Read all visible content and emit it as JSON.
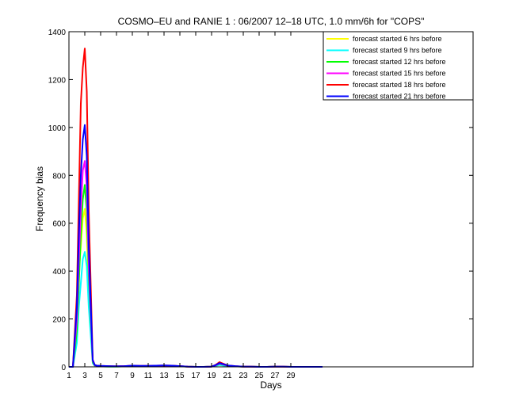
{
  "chart_data": {
    "type": "line",
    "title": "COSMO–EU and RANIE 1 : 06/2007 12–18 UTC, 1.0 mm/6h for \"COPS\"",
    "xlabel": "Days",
    "ylabel": "Frequency bias",
    "xlim": [
      1,
      52
    ],
    "ylim": [
      0,
      1400
    ],
    "xticks": [
      1,
      3,
      5,
      7,
      9,
      11,
      13,
      15,
      17,
      19,
      21,
      23,
      25,
      27,
      29
    ],
    "xtick_labels": [
      "1",
      "3",
      "5",
      "7",
      "9",
      "11",
      "13",
      "15",
      "17",
      "19",
      "21",
      "23",
      "25",
      "27",
      "29"
    ],
    "yticks": [
      0,
      200,
      400,
      600,
      800,
      1000,
      1200,
      1400
    ],
    "ytick_labels": [
      "0",
      "200",
      "400",
      "600",
      "800",
      "1000",
      "1200",
      "1400"
    ],
    "grid": false,
    "legend_position": "top-right",
    "series": [
      {
        "name": "forecast started 6 hrs before",
        "color": "#ffff00",
        "x": [
          1,
          1.5,
          2,
          2.25,
          2.5,
          2.75,
          3,
          3.25,
          3.5,
          4,
          4.25,
          4.5,
          5,
          6,
          7,
          8,
          9,
          10,
          11,
          12,
          13,
          14,
          15,
          16,
          17,
          18,
          19,
          19.5,
          20,
          21,
          22,
          23,
          24,
          25,
          26,
          27,
          28,
          29,
          30,
          31,
          32,
          33
        ],
        "y": [
          0,
          0,
          200,
          400,
          500,
          620,
          660,
          550,
          300,
          20,
          5,
          3,
          2,
          1,
          1,
          2,
          3,
          2,
          2,
          3,
          4,
          3,
          2,
          1,
          0,
          0,
          1,
          5,
          10,
          4,
          2,
          1,
          1,
          0,
          0,
          1,
          1,
          0,
          0,
          0,
          0,
          0
        ]
      },
      {
        "name": "forecast started 9 hrs before",
        "color": "#00ffff",
        "x": [
          1,
          1.5,
          2,
          2.25,
          2.5,
          2.75,
          3,
          3.25,
          3.5,
          4,
          4.25,
          4.5,
          5,
          6,
          7,
          8,
          9,
          10,
          11,
          12,
          13,
          14,
          15,
          16,
          17,
          18,
          19,
          19.5,
          20,
          21,
          22,
          23,
          24,
          25,
          26,
          27,
          28,
          29,
          30,
          31,
          32,
          33
        ],
        "y": [
          0,
          0,
          100,
          250,
          350,
          450,
          480,
          420,
          250,
          15,
          5,
          3,
          2,
          1,
          1,
          2,
          2,
          2,
          2,
          3,
          3,
          2,
          2,
          1,
          0,
          0,
          1,
          4,
          8,
          3,
          2,
          1,
          1,
          0,
          0,
          1,
          1,
          0,
          0,
          0,
          0,
          0
        ]
      },
      {
        "name": "forecast started 12 hrs before",
        "color": "#00ff00",
        "x": [
          1,
          1.5,
          2,
          2.25,
          2.5,
          2.75,
          3,
          3.25,
          3.5,
          4,
          4.25,
          4.5,
          5,
          6,
          7,
          8,
          9,
          10,
          11,
          12,
          13,
          14,
          15,
          16,
          17,
          18,
          19,
          19.5,
          20,
          21,
          22,
          23,
          24,
          25,
          26,
          27,
          28,
          29,
          30,
          31,
          32,
          33
        ],
        "y": [
          0,
          0,
          150,
          350,
          550,
          700,
          760,
          650,
          380,
          20,
          6,
          4,
          3,
          2,
          2,
          3,
          4,
          3,
          3,
          4,
          5,
          4,
          3,
          1,
          0,
          0,
          1,
          6,
          12,
          5,
          2,
          1,
          1,
          0,
          0,
          1,
          1,
          0,
          0,
          0,
          0,
          0
        ]
      },
      {
        "name": "forecast started 15 hrs before",
        "color": "#ff00ff",
        "x": [
          1,
          1.5,
          2,
          2.25,
          2.5,
          2.75,
          3,
          3.25,
          3.5,
          4,
          4.25,
          4.5,
          5,
          6,
          7,
          8,
          9,
          10,
          11,
          12,
          13,
          14,
          15,
          16,
          17,
          18,
          19,
          19.5,
          20,
          21,
          22,
          23,
          24,
          25,
          26,
          27,
          28,
          29,
          30,
          31,
          32,
          33
        ],
        "y": [
          0,
          0,
          200,
          450,
          650,
          820,
          860,
          750,
          420,
          25,
          7,
          4,
          3,
          2,
          2,
          3,
          4,
          3,
          3,
          4,
          5,
          4,
          3,
          1,
          0,
          0,
          1,
          6,
          14,
          5,
          2,
          1,
          1,
          0,
          0,
          1,
          1,
          0,
          0,
          0,
          0,
          0
        ]
      },
      {
        "name": "forecast started 18 hrs before",
        "color": "#ff0000",
        "x": [
          1,
          1.5,
          2,
          2.25,
          2.5,
          2.75,
          3,
          3.25,
          3.5,
          4,
          4.25,
          4.5,
          5,
          6,
          7,
          8,
          9,
          10,
          11,
          12,
          13,
          14,
          15,
          16,
          17,
          18,
          19,
          19.5,
          20,
          21,
          22,
          23,
          24,
          25,
          26,
          27,
          28,
          29,
          30,
          31,
          32,
          33
        ],
        "y": [
          0,
          0,
          300,
          700,
          1100,
          1250,
          1330,
          1150,
          650,
          30,
          8,
          5,
          4,
          3,
          2,
          3,
          5,
          4,
          4,
          5,
          6,
          5,
          3,
          1,
          0,
          0,
          1,
          8,
          20,
          6,
          3,
          1,
          1,
          0,
          0,
          1,
          1,
          0,
          0,
          0,
          0,
          0
        ]
      },
      {
        "name": "forecast started 21 hrs before",
        "color": "#0000ff",
        "x": [
          1,
          1.5,
          2,
          2.25,
          2.5,
          2.75,
          3,
          3.25,
          3.5,
          4,
          4.25,
          4.5,
          5,
          6,
          7,
          8,
          9,
          10,
          11,
          12,
          13,
          14,
          15,
          16,
          17,
          18,
          19,
          19.5,
          20,
          21,
          22,
          23,
          24,
          25,
          26,
          27,
          28,
          29,
          30,
          31,
          32,
          33
        ],
        "y": [
          0,
          0,
          250,
          550,
          800,
          950,
          1010,
          880,
          500,
          28,
          8,
          5,
          4,
          3,
          2,
          3,
          5,
          4,
          4,
          5,
          6,
          5,
          3,
          1,
          0,
          0,
          1,
          7,
          16,
          6,
          3,
          1,
          1,
          0,
          0,
          1,
          1,
          0,
          0,
          0,
          0,
          0
        ]
      }
    ]
  }
}
